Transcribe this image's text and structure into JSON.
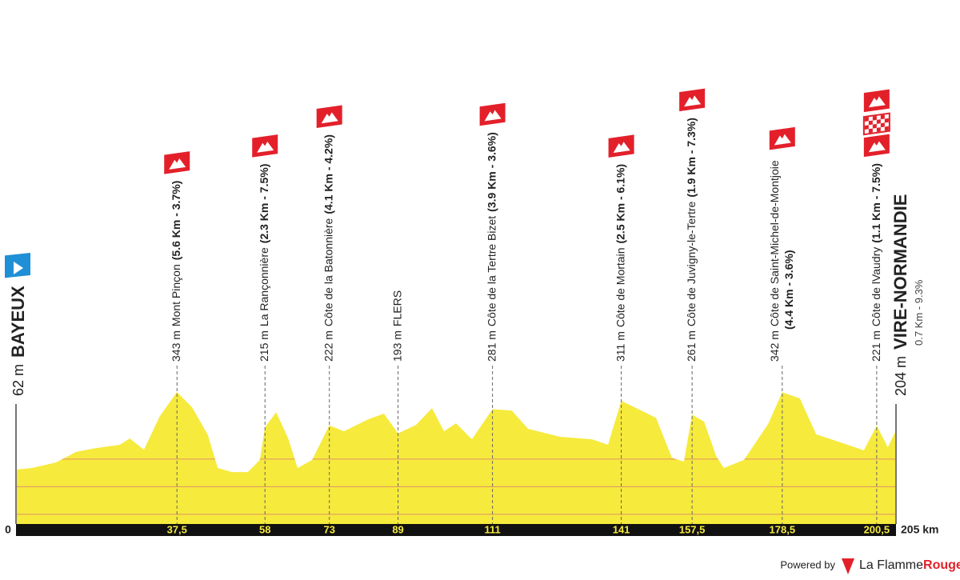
{
  "chart_data": {
    "type": "area",
    "x": [
      0,
      3.7,
      9.3,
      14.0,
      18.6,
      24.2,
      26.5,
      29.8,
      33.5,
      37.5,
      41.0,
      44.7,
      47.0,
      50.3,
      54.0,
      56.8,
      58,
      60.6,
      63.4,
      65.6,
      69.0,
      73,
      76.4,
      82.0,
      85.7,
      89,
      93.2,
      96.9,
      99.7,
      102.5,
      106.2,
      111,
      115.5,
      119.3,
      126.7,
      134.2,
      137.9,
      141,
      145.3,
      149.1,
      152.8,
      155.6,
      157.5,
      160.3,
      163.1,
      164.9,
      169.6,
      175.2,
      178.5,
      182.6,
      186.4,
      192.0,
      197.5,
      200.5,
      203.1,
      205
    ],
    "values": [
      62,
      68,
      88,
      126,
      140,
      152,
      175,
      134,
      256,
      343,
      288,
      187,
      68,
      53,
      53,
      97,
      215,
      270,
      175,
      68,
      97,
      222,
      201,
      244,
      265,
      193,
      224,
      285,
      201,
      230,
      172,
      281,
      276,
      210,
      181,
      172,
      152,
      311,
      279,
      250,
      105,
      91,
      261,
      236,
      111,
      68,
      97,
      227,
      342,
      320,
      190,
      161,
      132,
      221,
      143,
      204
    ],
    "color": "#f6ea3c",
    "xlim": [
      0,
      205
    ],
    "ylim": [
      -135,
      400
    ],
    "grid_lines": [
      -100,
      0,
      100
    ],
    "grid_color": "#e0906a",
    "x_start_label": "0",
    "x_end_label": "205 km",
    "start": {
      "elevation_label": "62 m",
      "name": "BAYEUX"
    },
    "finish": {
      "elevation_label": "204 m",
      "name": "VIRE-NORMANDIE",
      "detail": "0.7 Km - 9.3%"
    },
    "points": [
      {
        "km": {
          "value": 37.5,
          "label": "37,5"
        },
        "elevation_label": "343 m",
        "name": "Mont Pinçon",
        "detail": "(5.6 Km - 3.7%)",
        "icons": [
          "climb"
        ]
      },
      {
        "km": 58,
        "elevation_label": "215 m",
        "name": "La Rançonnière",
        "detail": "(2.3 Km - 7.5%)",
        "icons": [
          "climb"
        ]
      },
      {
        "km": 73,
        "elevation_label": "222 m",
        "name": "Côte de la Batonnière",
        "detail": "(4.1 Km - 4.2%)",
        "icons": [
          "climb"
        ]
      },
      {
        "km": 89,
        "elevation_label": "193 m",
        "name": "FLERS",
        "icons": []
      },
      {
        "km": 111,
        "elevation_label": "281 m",
        "name": "Côte de la Tertre Bizet",
        "detail": "(3.9 Km - 3.6%)",
        "icons": [
          "climb"
        ]
      },
      {
        "km": 141,
        "elevation_label": "311 m",
        "name": "Côte de Mortain",
        "detail": "(2.5 Km - 6.1%)",
        "icons": [
          "climb"
        ]
      },
      {
        "km": {
          "value": 157.5,
          "label": "157,5"
        },
        "elevation_label": "261 m",
        "name": "Côte de Juvigny-le-Tertre",
        "detail": "(1.9 Km - 7.3%)",
        "icons": [
          "climb"
        ]
      },
      {
        "km": {
          "value": 178.5,
          "label": "178,5"
        },
        "elevation_label": "342 m",
        "name": "Côte de Saint-Michel-de-Montjoie",
        "detail": "(4.4 Km - 3.6%)",
        "wrap": true,
        "icons": [
          "climb"
        ]
      },
      {
        "km": {
          "value": 200.5,
          "label": "200,5"
        },
        "elevation_label": "221 m",
        "name": "Côte de lVaudry",
        "detail": "(1.1 Km - 7.5%)",
        "icons": [
          "climb",
          "finish",
          "climb"
        ]
      }
    ]
  },
  "footer": {
    "powered": "Powered by",
    "brand": "La Flamme",
    "brand_bold": "Rouge"
  }
}
